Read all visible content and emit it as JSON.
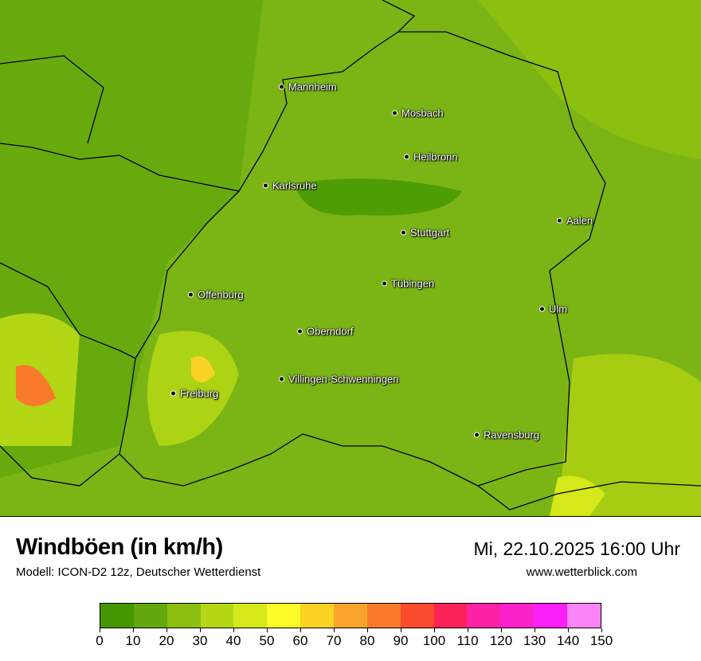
{
  "map": {
    "base_color": "#7ab515",
    "cities": [
      "Mannheim",
      "Mosbach",
      "Heilbronn",
      "Karlsruhe",
      "Aalen",
      "Stuttgart",
      "Tübingen",
      "Offenburg",
      "Ulm",
      "Oberndorf",
      "Villingen-Schwenningen",
      "Freiburg",
      "Ravensburg"
    ]
  },
  "header": {
    "title": "Windböen (in km/h)",
    "model": "Modell: ICON-D2 12z, Deutscher Wetterdienst",
    "datetime": "Mi, 22.10.2025 16:00 Uhr",
    "website": "www.wetterblick.com"
  },
  "legend": {
    "colors": [
      "#449700",
      "#63a80c",
      "#8bbf10",
      "#b3d615",
      "#d4e81a",
      "#fafb27",
      "#fad224",
      "#f9a42c",
      "#fa7a2c",
      "#fb4b2e",
      "#fb2256",
      "#fb22a8",
      "#fb22cc",
      "#fb1ef7",
      "#fb85f7"
    ],
    "ticks": [
      "0",
      "10",
      "20",
      "30",
      "40",
      "50",
      "60",
      "70",
      "80",
      "90",
      "100",
      "110",
      "120",
      "130",
      "140",
      "150"
    ]
  }
}
